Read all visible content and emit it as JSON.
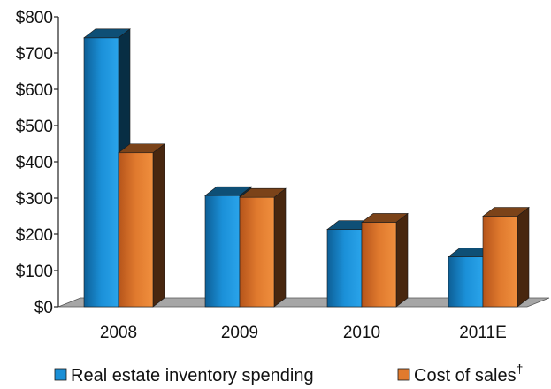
{
  "chart_data": {
    "type": "bar",
    "categories": [
      "2008",
      "2009",
      "2010",
      "2011E"
    ],
    "series": [
      {
        "name": "Real estate inventory spending",
        "values": [
          742,
          307,
          213,
          138
        ],
        "color": "#1a8fd6"
      },
      {
        "name": "Cost of sales",
        "name_suffix": "†",
        "values": [
          425,
          302,
          233,
          250
        ],
        "color": "#e07a2e"
      }
    ],
    "y_ticks": [
      "$0",
      "$100",
      "$200",
      "$300",
      "$400",
      "$500",
      "$600",
      "$700",
      "$800"
    ],
    "ylim": [
      0,
      800
    ],
    "grid": false,
    "legend_position": "bottom",
    "floor_color": "#a6a6a6"
  }
}
